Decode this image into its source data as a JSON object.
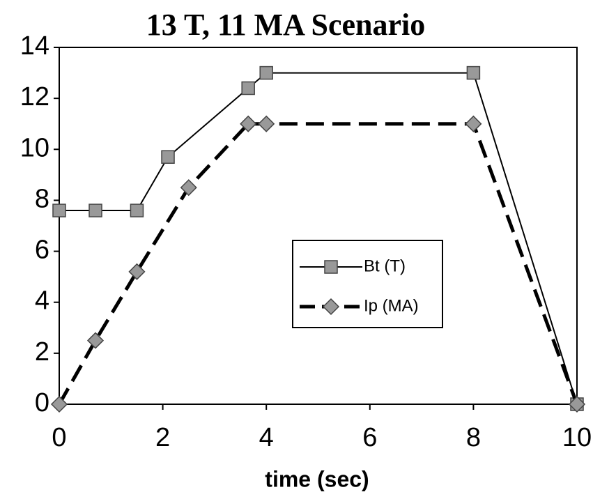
{
  "chart_data": {
    "type": "line",
    "title": "13 T, 11 MA Scenario",
    "x_label": "time (sec)",
    "xlim": [
      0,
      10
    ],
    "xticks": [
      0,
      2,
      4,
      6,
      8,
      10
    ],
    "ylim": [
      0,
      14
    ],
    "yticks": [
      0,
      2,
      4,
      6,
      8,
      10,
      12,
      14
    ],
    "legend": "center-right",
    "series": [
      {
        "name": "Bt (T)",
        "color": "#000000",
        "marker": "square",
        "dash": "solid",
        "x": [
          0,
          0.7,
          1.5,
          2.1,
          3.65,
          4,
          8,
          10
        ],
        "values": [
          7.6,
          7.6,
          7.6,
          9.7,
          12.4,
          13,
          13,
          0
        ]
      },
      {
        "name": "Ip (MA)",
        "color": "#000000",
        "marker": "diamond",
        "dash": "dashed",
        "x": [
          0,
          0.7,
          1.5,
          2.5,
          3.65,
          4,
          8,
          10
        ],
        "values": [
          0,
          2.5,
          5.2,
          8.5,
          11,
          11,
          11,
          0
        ]
      }
    ]
  }
}
